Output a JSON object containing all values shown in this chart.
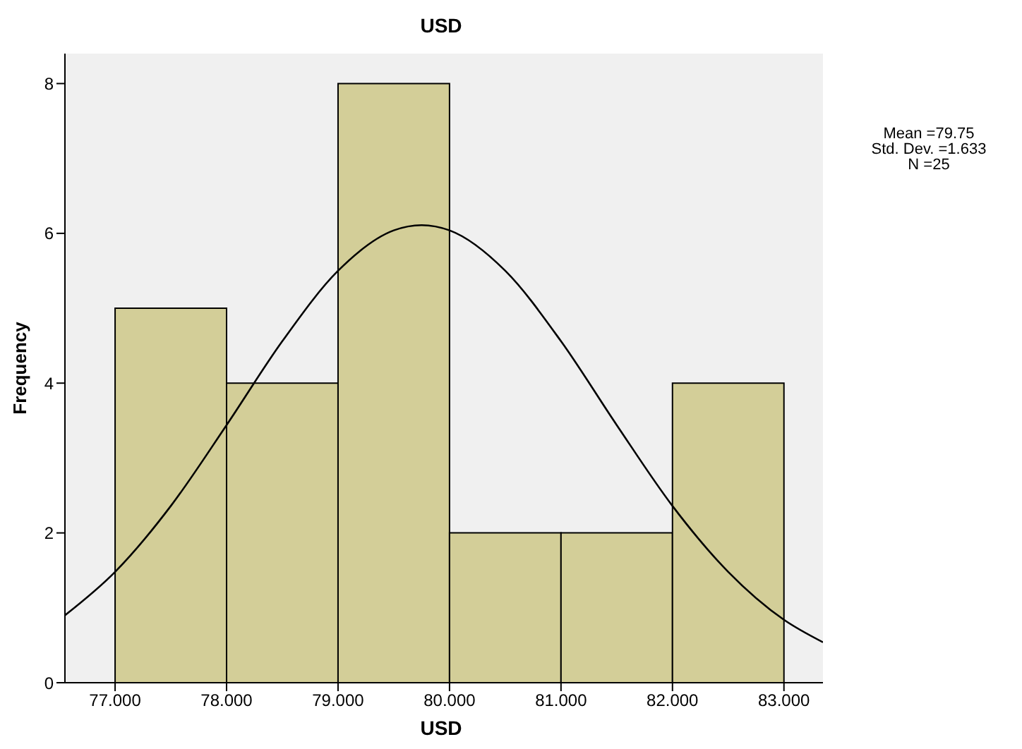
{
  "chart_data": {
    "type": "histogram",
    "title": "USD",
    "xlabel": "USD",
    "ylabel": "Frequency",
    "bins": [
      77,
      78,
      79,
      80,
      81,
      82,
      83
    ],
    "values": [
      5,
      4,
      8,
      2,
      2,
      4
    ],
    "color": "#d3ce98",
    "series": [
      {
        "type": "line",
        "color": "#000000",
        "x": [
          76.55,
          77,
          77.5,
          78,
          78.5,
          79,
          79.5,
          79.75,
          80,
          80.5,
          81,
          81.5,
          82,
          82.5,
          83,
          83.35
        ],
        "values": [
          0.9,
          1.48,
          2.36,
          3.44,
          4.56,
          5.5,
          6.04,
          6.11,
          6.04,
          5.5,
          4.56,
          3.44,
          2.36,
          1.48,
          0.84,
          0.54
        ]
      }
    ],
    "xlim": [
      76.55,
      83.35
    ],
    "ylim": [
      0,
      8.4
    ],
    "xticks": [
      {
        "value": 77,
        "label": "77.000"
      },
      {
        "value": 78,
        "label": "78.000"
      },
      {
        "value": 79,
        "label": "79.000"
      },
      {
        "value": 80,
        "label": "80.000"
      },
      {
        "value": 81,
        "label": "81.000"
      },
      {
        "value": 82,
        "label": "82.000"
      },
      {
        "value": 83,
        "label": "83.000"
      }
    ],
    "yticks": [
      0,
      2,
      4,
      6,
      8
    ],
    "annotations": [
      "Mean =79.75\nStd. Dev. =1.633\nN =25"
    ]
  }
}
